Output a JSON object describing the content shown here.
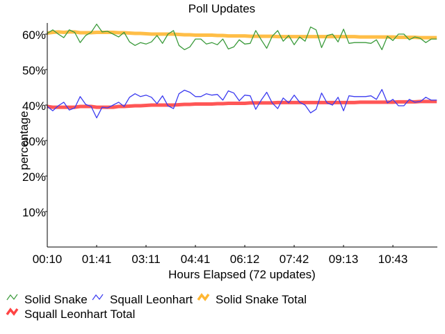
{
  "chart_data": {
    "type": "line",
    "title": "Poll Updates",
    "xlabel": "Hours Elapsed (72 updates)",
    "ylabel": "percentage",
    "ylim": [
      0,
      63
    ],
    "yticks": [
      10,
      20,
      30,
      40,
      50,
      60
    ],
    "ytick_labels": [
      "10%",
      "20%",
      "30%",
      "40%",
      "50%",
      "60%"
    ],
    "n_points": 72,
    "xtick_indices": [
      0,
      9,
      18,
      27,
      36,
      45,
      54,
      63
    ],
    "xtick_labels": [
      "00:10",
      "01:41",
      "03:11",
      "04:41",
      "06:12",
      "07:42",
      "09:13",
      "10:43"
    ],
    "grid": false,
    "legend_position": "bottom-left",
    "series": [
      {
        "name": "Solid Snake",
        "color": "#3a9a3a",
        "style": "thin",
        "values": [
          60.2,
          61.2,
          60.0,
          59.0,
          61.2,
          60.5,
          57.6,
          59.6,
          60.5,
          62.8,
          60.6,
          60.8,
          60.0,
          59.2,
          60.5,
          57.8,
          56.8,
          57.6,
          57.2,
          57.8,
          59.6,
          57.4,
          60.0,
          61.0,
          56.8,
          55.6,
          56.4,
          58.6,
          58.6,
          57.2,
          57.6,
          57.0,
          58.6,
          55.8,
          56.4,
          58.4,
          57.2,
          57.4,
          61.0,
          58.4,
          56.0,
          59.4,
          61.0,
          58.0,
          59.6,
          57.0,
          59.2,
          58.0,
          62.0,
          61.2,
          56.2,
          59.6,
          60.0,
          57.8,
          61.4,
          57.4,
          57.6,
          57.6,
          57.6,
          57.4,
          58.4,
          55.6,
          59.4,
          58.2,
          60.0,
          60.0,
          58.4,
          59.2,
          58.8,
          57.6,
          58.6,
          58.6
        ]
      },
      {
        "name": "Squall Leonhart",
        "color": "#3a3af0",
        "style": "thin",
        "values": [
          39.6,
          38.4,
          39.8,
          40.8,
          38.6,
          39.2,
          42.4,
          40.2,
          39.6,
          36.4,
          39.4,
          39.2,
          40.0,
          40.8,
          39.6,
          42.2,
          43.2,
          42.4,
          42.8,
          42.2,
          40.4,
          42.6,
          39.8,
          39.0,
          43.2,
          44.2,
          43.6,
          42.4,
          42.4,
          43.2,
          42.8,
          43.0,
          41.4,
          44.0,
          43.4,
          41.2,
          42.8,
          42.6,
          38.8,
          41.4,
          43.6,
          40.6,
          39.0,
          42.0,
          40.6,
          42.8,
          40.8,
          40.0,
          37.8,
          38.8,
          43.4,
          40.6,
          40.0,
          42.2,
          38.4,
          42.6,
          42.4,
          42.4,
          42.4,
          42.6,
          41.6,
          44.4,
          40.6,
          41.6,
          39.8,
          39.8,
          41.6,
          40.8,
          41.0,
          42.2,
          41.4,
          41.4
        ]
      },
      {
        "name": "Solid Snake Total",
        "color": "#ffb733",
        "style": "thick",
        "values": [
          60.3,
          60.5,
          60.6,
          60.5,
          60.6,
          60.6,
          60.4,
          60.4,
          60.4,
          60.5,
          60.5,
          60.5,
          60.5,
          60.4,
          60.4,
          60.3,
          60.2,
          60.2,
          60.1,
          60.0,
          60.0,
          60.0,
          60.0,
          60.0,
          59.9,
          59.8,
          59.8,
          59.7,
          59.7,
          59.7,
          59.7,
          59.6,
          59.6,
          59.5,
          59.5,
          59.5,
          59.5,
          59.4,
          59.4,
          59.4,
          59.4,
          59.4,
          59.3,
          59.3,
          59.3,
          59.3,
          59.3,
          59.3,
          59.3,
          59.3,
          59.3,
          59.3,
          59.3,
          59.3,
          59.3,
          59.3,
          59.3,
          59.2,
          59.2,
          59.2,
          59.2,
          59.2,
          59.2,
          59.2,
          59.1,
          59.1,
          59.1,
          59.1,
          59.0,
          59.0,
          59.0,
          59.0
        ]
      },
      {
        "name": "Squall Leonhart Total",
        "color": "#ff4444",
        "style": "thick",
        "values": [
          39.6,
          39.4,
          39.4,
          39.4,
          39.4,
          39.4,
          39.6,
          39.6,
          39.6,
          39.4,
          39.4,
          39.4,
          39.4,
          39.6,
          39.6,
          39.7,
          39.8,
          39.8,
          39.9,
          40.0,
          40.0,
          40.0,
          40.0,
          40.0,
          40.1,
          40.2,
          40.2,
          40.3,
          40.3,
          40.3,
          40.3,
          40.4,
          40.4,
          40.5,
          40.5,
          40.5,
          40.5,
          40.6,
          40.6,
          40.6,
          40.6,
          40.6,
          40.7,
          40.7,
          40.7,
          40.7,
          40.7,
          40.7,
          40.7,
          40.7,
          40.7,
          40.7,
          40.7,
          40.7,
          40.7,
          40.7,
          40.7,
          40.8,
          40.8,
          40.8,
          40.8,
          40.8,
          40.8,
          40.8,
          40.9,
          40.9,
          40.9,
          40.9,
          41.0,
          41.0,
          41.0,
          41.0
        ]
      }
    ]
  }
}
